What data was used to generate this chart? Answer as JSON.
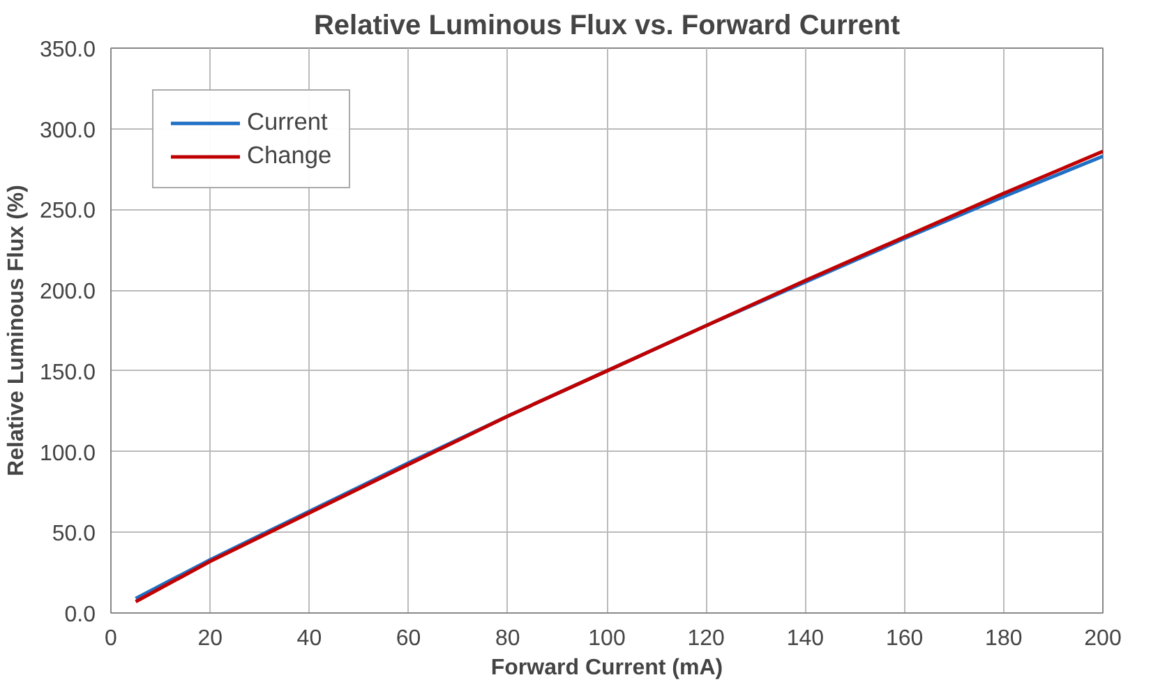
{
  "chart_data": {
    "type": "line",
    "title": "Relative Luminous Flux vs. Forward Current",
    "xlabel": "Forward Current (mA)",
    "ylabel": "Relative Luminous Flux (%)",
    "x": [
      5,
      20,
      40,
      60,
      80,
      100,
      120,
      140,
      160,
      180,
      200
    ],
    "series": [
      {
        "name": "Current",
        "color": "#1f6fc5",
        "values": [
          9,
          33,
          63,
          93,
          122,
          150,
          178,
          205,
          232,
          258,
          283
        ]
      },
      {
        "name": "Change",
        "color": "#c00000",
        "values": [
          7,
          32,
          62,
          92,
          122,
          150,
          178,
          206,
          233,
          260,
          286
        ]
      }
    ],
    "xlim": [
      0,
      200
    ],
    "xticks": [
      0,
      20,
      40,
      60,
      80,
      100,
      120,
      140,
      160,
      180,
      200
    ],
    "ylim": [
      0,
      350
    ],
    "yticks": [
      {
        "value": 0,
        "label": "0.0"
      },
      {
        "value": 50,
        "label": "50.0"
      },
      {
        "value": 100,
        "label": "100.0"
      },
      {
        "value": 150,
        "label": "150.0"
      },
      {
        "value": 200,
        "label": "200.0"
      },
      {
        "value": 250,
        "label": "250.0"
      },
      {
        "value": 300,
        "label": "300.0"
      },
      {
        "value": 350,
        "label": "350.0"
      }
    ],
    "grid": true,
    "legend": "top left",
    "line_style": "solid"
  }
}
